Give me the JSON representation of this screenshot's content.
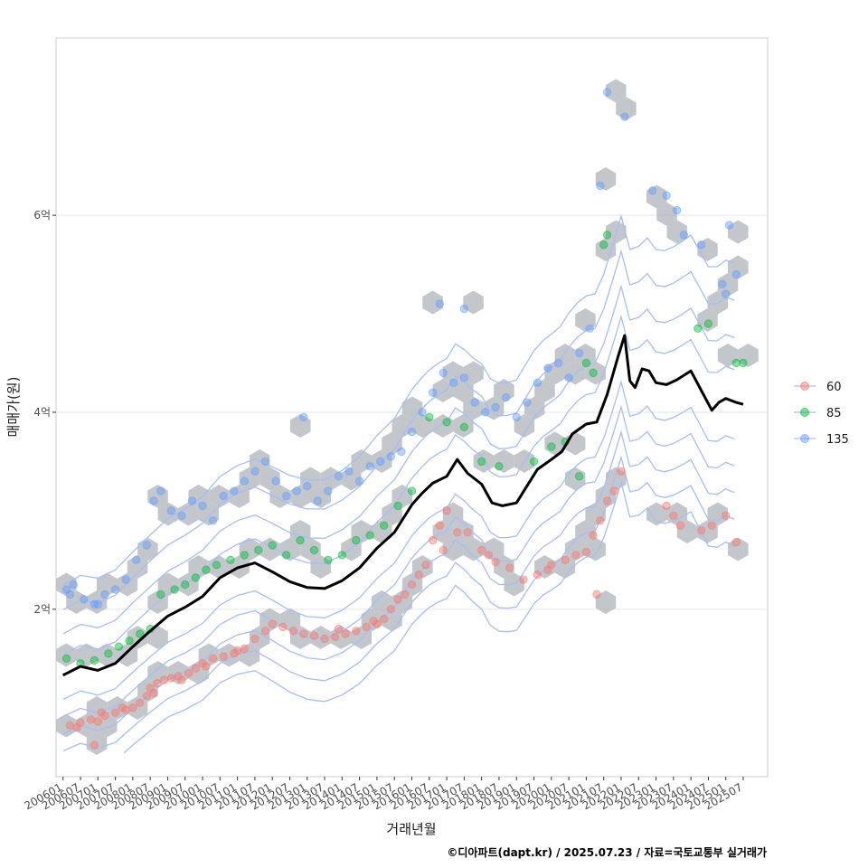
{
  "chart_data": {
    "type": "scatter",
    "title": "",
    "xlabel": "거래년월",
    "ylabel": "매매가(원)",
    "caption": "©디아파트(dapt.kr) / 2025.07.23 / 자료=국토교통부 실거래가",
    "x_ticks": [
      "200601",
      "200607",
      "200701",
      "200707",
      "200801",
      "200807",
      "200901",
      "200907",
      "201001",
      "201007",
      "201101",
      "201107",
      "201201",
      "201207",
      "201301",
      "201307",
      "201401",
      "201407",
      "201501",
      "201507",
      "201601",
      "201607",
      "201701",
      "201707",
      "201801",
      "201807",
      "201901",
      "201907",
      "202001",
      "202007",
      "202101",
      "202107",
      "202201",
      "202207",
      "202301",
      "202307",
      "202401",
      "202407",
      "202501",
      "202507"
    ],
    "y_ticks": [
      {
        "value": 2,
        "label": "2억"
      },
      {
        "value": 4,
        "label": "4억"
      },
      {
        "value": 6,
        "label": "6억"
      }
    ],
    "ylim": [
      0.3,
      7.8
    ],
    "xlim_years": [
      2005.8,
      2026.2
    ],
    "legend": {
      "position": "right",
      "entries": [
        {
          "label": "60",
          "color": "#F8766D"
        },
        {
          "label": "85",
          "color": "#00BA38"
        },
        {
          "label": "135",
          "color": "#619CFF"
        }
      ]
    },
    "colors": {
      "grid": "#e5e5e5",
      "hexbin": "#b8bcc2",
      "contour": "#a9bdf3",
      "trend": "#000000"
    },
    "trend_line": {
      "name": "moving median (억)",
      "x": [
        2006.0,
        2006.5,
        2007.0,
        2007.5,
        2008.0,
        2008.5,
        2009.0,
        2009.5,
        2010.0,
        2010.5,
        2011.0,
        2011.5,
        2012.0,
        2012.5,
        2013.0,
        2013.5,
        2014.0,
        2014.5,
        2015.0,
        2015.5,
        2016.0,
        2016.3,
        2016.6,
        2017.0,
        2017.3,
        2017.6,
        2018.0,
        2018.3,
        2018.6,
        2019.0,
        2019.3,
        2019.6,
        2020.0,
        2020.3,
        2020.6,
        2021.0,
        2021.3,
        2021.6,
        2021.9,
        2022.1,
        2022.25,
        2022.4,
        2022.6,
        2022.8,
        2023.0,
        2023.3,
        2023.6,
        2024.0,
        2024.3,
        2024.6,
        2024.8,
        2025.0,
        2025.3,
        2025.5
      ],
      "y": [
        1.33,
        1.42,
        1.38,
        1.45,
        1.62,
        1.78,
        1.93,
        2.02,
        2.13,
        2.32,
        2.42,
        2.47,
        2.38,
        2.28,
        2.22,
        2.21,
        2.29,
        2.42,
        2.62,
        2.78,
        3.06,
        3.18,
        3.28,
        3.35,
        3.52,
        3.38,
        3.27,
        3.08,
        3.05,
        3.08,
        3.25,
        3.42,
        3.52,
        3.6,
        3.78,
        3.88,
        3.9,
        4.18,
        4.55,
        4.78,
        4.32,
        4.25,
        4.44,
        4.42,
        4.3,
        4.28,
        4.33,
        4.42,
        4.22,
        4.02,
        4.1,
        4.14,
        4.1,
        4.08
      ]
    },
    "density_series": [
      {
        "name": "60",
        "points": [
          [
            2006.2,
            0.82
          ],
          [
            2006.5,
            0.85
          ],
          [
            2006.8,
            0.88
          ],
          [
            2007.0,
            0.86
          ],
          [
            2007.2,
            0.92
          ],
          [
            2007.5,
            0.95
          ],
          [
            2007.8,
            0.98
          ],
          [
            2008.0,
            1.0
          ],
          [
            2008.2,
            1.05
          ],
          [
            2008.4,
            1.12
          ],
          [
            2008.5,
            1.2
          ],
          [
            2008.7,
            1.25
          ],
          [
            2008.9,
            1.28
          ],
          [
            2009.1,
            1.3
          ],
          [
            2009.3,
            1.32
          ],
          [
            2009.6,
            1.35
          ],
          [
            2009.8,
            1.4
          ],
          [
            2010.0,
            1.45
          ],
          [
            2010.3,
            1.5
          ],
          [
            2010.6,
            1.52
          ],
          [
            2010.9,
            1.55
          ],
          [
            2011.2,
            1.6
          ],
          [
            2011.5,
            1.7
          ],
          [
            2011.8,
            1.78
          ],
          [
            2012.0,
            1.85
          ],
          [
            2012.3,
            1.82
          ],
          [
            2012.6,
            1.78
          ],
          [
            2012.9,
            1.75
          ],
          [
            2013.2,
            1.73
          ],
          [
            2013.5,
            1.7
          ],
          [
            2013.8,
            1.72
          ],
          [
            2014.1,
            1.75
          ],
          [
            2014.4,
            1.78
          ],
          [
            2014.7,
            1.82
          ],
          [
            2015.0,
            1.85
          ],
          [
            2015.2,
            1.9
          ],
          [
            2015.4,
            2.0
          ],
          [
            2015.6,
            2.1
          ],
          [
            2015.8,
            2.15
          ],
          [
            2016.0,
            2.25
          ],
          [
            2016.2,
            2.35
          ],
          [
            2016.4,
            2.45
          ],
          [
            2016.6,
            2.7
          ],
          [
            2016.8,
            2.85
          ],
          [
            2017.0,
            3.0
          ],
          [
            2017.3,
            2.78
          ],
          [
            2017.6,
            2.78
          ],
          [
            2018.0,
            2.6
          ],
          [
            2018.4,
            2.48
          ],
          [
            2018.8,
            2.42
          ],
          [
            2019.2,
            2.3
          ],
          [
            2019.6,
            2.35
          ],
          [
            2020.0,
            2.45
          ],
          [
            2020.4,
            2.5
          ],
          [
            2020.7,
            2.55
          ],
          [
            2021.0,
            2.58
          ],
          [
            2021.2,
            2.75
          ],
          [
            2021.4,
            2.9
          ],
          [
            2021.6,
            3.1
          ],
          [
            2021.8,
            3.2
          ],
          [
            2022.0,
            3.4
          ],
          [
            2023.3,
            3.05
          ],
          [
            2023.5,
            2.95
          ],
          [
            2023.7,
            2.85
          ],
          [
            2024.3,
            2.8
          ],
          [
            2024.6,
            2.85
          ],
          [
            2025.0,
            2.95
          ],
          [
            2025.3,
            2.68
          ],
          [
            2006.4,
            0.8
          ],
          [
            2007.1,
            0.95
          ],
          [
            2007.7,
            1.0
          ],
          [
            2008.6,
            1.15
          ],
          [
            2009.4,
            1.28
          ],
          [
            2010.1,
            1.42
          ],
          [
            2011.0,
            1.58
          ],
          [
            2013.9,
            1.8
          ],
          [
            2014.9,
            1.88
          ],
          [
            2016.9,
            2.6
          ],
          [
            2018.2,
            2.55
          ],
          [
            2019.9,
            2.4
          ],
          [
            2021.3,
            2.15
          ],
          [
            2006.9,
            0.62
          ]
        ]
      },
      {
        "name": "85",
        "points": [
          [
            2006.1,
            1.5
          ],
          [
            2006.5,
            1.45
          ],
          [
            2006.9,
            1.48
          ],
          [
            2007.3,
            1.55
          ],
          [
            2007.6,
            1.62
          ],
          [
            2007.9,
            1.68
          ],
          [
            2008.2,
            1.75
          ],
          [
            2008.5,
            1.8
          ],
          [
            2008.8,
            2.15
          ],
          [
            2009.2,
            2.2
          ],
          [
            2009.5,
            2.25
          ],
          [
            2009.8,
            2.32
          ],
          [
            2010.1,
            2.4
          ],
          [
            2010.4,
            2.45
          ],
          [
            2010.8,
            2.5
          ],
          [
            2011.2,
            2.55
          ],
          [
            2011.6,
            2.6
          ],
          [
            2012.0,
            2.65
          ],
          [
            2012.4,
            2.55
          ],
          [
            2012.8,
            2.7
          ],
          [
            2013.2,
            2.6
          ],
          [
            2013.6,
            2.5
          ],
          [
            2014.0,
            2.55
          ],
          [
            2014.4,
            2.7
          ],
          [
            2014.8,
            2.75
          ],
          [
            2015.2,
            2.85
          ],
          [
            2015.6,
            3.05
          ],
          [
            2016.0,
            3.2
          ],
          [
            2016.5,
            3.95
          ],
          [
            2017.0,
            3.9
          ],
          [
            2017.5,
            3.85
          ],
          [
            2018.0,
            3.5
          ],
          [
            2018.5,
            3.45
          ],
          [
            2019.5,
            3.5
          ],
          [
            2020.0,
            3.65
          ],
          [
            2020.4,
            3.7
          ],
          [
            2020.8,
            3.35
          ],
          [
            2021.0,
            4.5
          ],
          [
            2021.2,
            4.4
          ],
          [
            2021.5,
            5.7
          ],
          [
            2021.6,
            5.8
          ],
          [
            2024.2,
            4.85
          ],
          [
            2024.5,
            4.9
          ],
          [
            2025.3,
            4.5
          ],
          [
            2025.5,
            4.5
          ]
        ]
      },
      {
        "name": "135",
        "points": [
          [
            2006.1,
            2.2
          ],
          [
            2006.3,
            2.25
          ],
          [
            2006.6,
            2.1
          ],
          [
            2006.9,
            2.05
          ],
          [
            2007.2,
            2.15
          ],
          [
            2007.5,
            2.2
          ],
          [
            2007.8,
            2.3
          ],
          [
            2008.1,
            2.5
          ],
          [
            2008.4,
            2.65
          ],
          [
            2008.6,
            3.1
          ],
          [
            2008.8,
            3.2
          ],
          [
            2009.1,
            3.0
          ],
          [
            2009.4,
            2.95
          ],
          [
            2009.7,
            3.1
          ],
          [
            2010.0,
            3.05
          ],
          [
            2010.3,
            2.9
          ],
          [
            2010.6,
            3.15
          ],
          [
            2010.9,
            3.2
          ],
          [
            2011.2,
            3.3
          ],
          [
            2011.5,
            3.4
          ],
          [
            2011.8,
            3.5
          ],
          [
            2012.1,
            3.3
          ],
          [
            2012.4,
            3.15
          ],
          [
            2012.7,
            3.2
          ],
          [
            2013.0,
            3.25
          ],
          [
            2013.3,
            3.1
          ],
          [
            2013.6,
            3.2
          ],
          [
            2013.9,
            3.35
          ],
          [
            2014.2,
            3.4
          ],
          [
            2014.5,
            3.3
          ],
          [
            2014.8,
            3.45
          ],
          [
            2015.1,
            3.5
          ],
          [
            2015.4,
            3.55
          ],
          [
            2015.7,
            3.6
          ],
          [
            2016.0,
            3.8
          ],
          [
            2016.3,
            4.0
          ],
          [
            2016.6,
            4.2
          ],
          [
            2016.9,
            4.4
          ],
          [
            2017.2,
            4.3
          ],
          [
            2017.5,
            4.35
          ],
          [
            2017.8,
            4.1
          ],
          [
            2018.1,
            4.0
          ],
          [
            2018.4,
            4.05
          ],
          [
            2018.7,
            4.15
          ],
          [
            2019.0,
            3.95
          ],
          [
            2019.3,
            4.1
          ],
          [
            2019.6,
            4.3
          ],
          [
            2019.9,
            4.45
          ],
          [
            2020.2,
            4.5
          ],
          [
            2020.5,
            4.35
          ],
          [
            2020.8,
            4.6
          ],
          [
            2021.1,
            4.85
          ],
          [
            2021.4,
            6.3
          ],
          [
            2021.6,
            7.25
          ],
          [
            2022.1,
            7.0
          ],
          [
            2022.9,
            6.25
          ],
          [
            2023.3,
            6.2
          ],
          [
            2023.6,
            6.05
          ],
          [
            2023.8,
            5.8
          ],
          [
            2024.3,
            5.7
          ],
          [
            2024.9,
            5.3
          ],
          [
            2025.0,
            5.2
          ],
          [
            2025.3,
            5.4
          ],
          [
            2025.1,
            5.9
          ],
          [
            2006.2,
            2.15
          ],
          [
            2007.0,
            2.05
          ],
          [
            2012.9,
            3.95
          ],
          [
            2016.8,
            5.1
          ],
          [
            2017.5,
            5.05
          ]
        ]
      }
    ]
  }
}
